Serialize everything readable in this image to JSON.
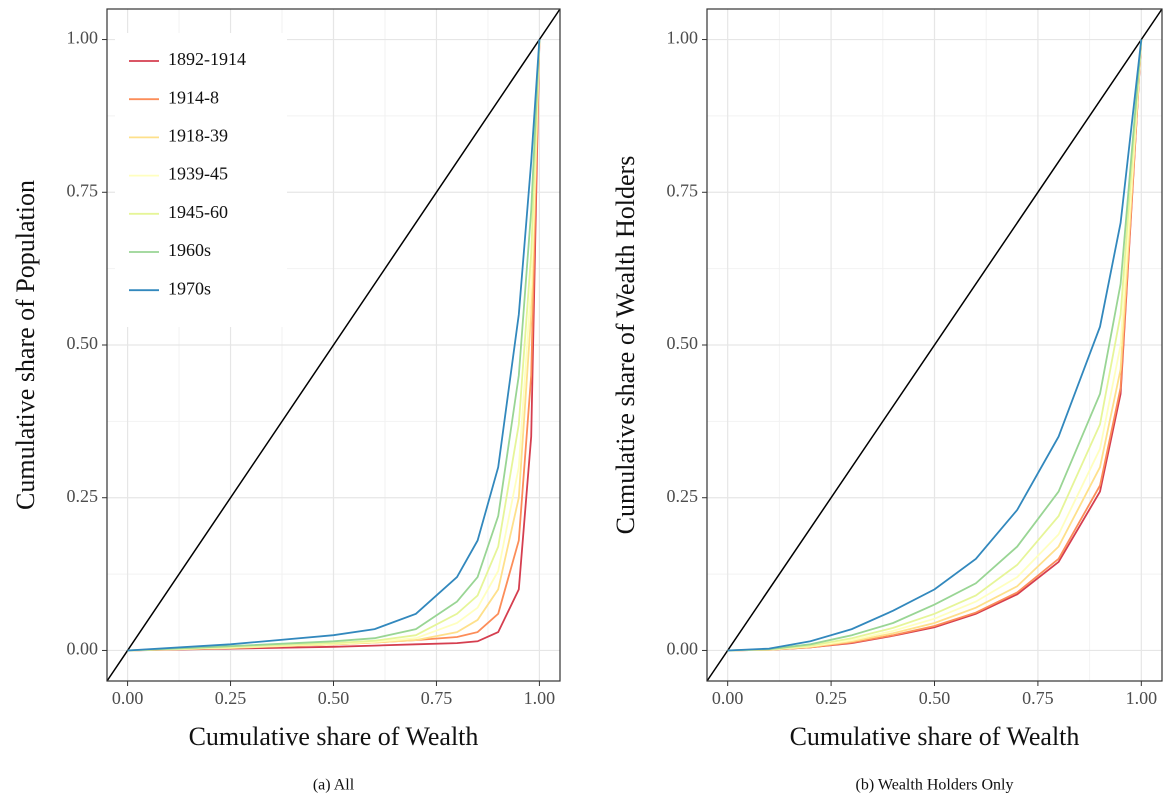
{
  "chart_data": [
    {
      "type": "line",
      "caption": "(a) All",
      "xlabel": "Cumulative share of Wealth",
      "ylabel": "Cumulative share of Population",
      "xlim": [
        -0.05,
        1.05
      ],
      "ylim": [
        -0.05,
        1.05
      ],
      "xticks": [
        {
          "value": 0,
          "label": "0.00"
        },
        {
          "value": 0.25,
          "label": "0.25"
        },
        {
          "value": 0.5,
          "label": "0.50"
        },
        {
          "value": 0.75,
          "label": "0.75"
        },
        {
          "value": 1,
          "label": "1.00"
        }
      ],
      "yticks": [
        {
          "value": 0,
          "label": "0.00"
        },
        {
          "value": 0.25,
          "label": "0.25"
        },
        {
          "value": 0.5,
          "label": "0.50"
        },
        {
          "value": 0.75,
          "label": "0.75"
        },
        {
          "value": 1,
          "label": "1.00"
        }
      ],
      "grid": true,
      "legend": "top-left",
      "diagonal": true,
      "x": [
        0,
        0.25,
        0.5,
        0.6,
        0.7,
        0.8,
        0.85,
        0.9,
        0.95,
        0.98,
        1
      ],
      "series": [
        {
          "name": "1892-1914",
          "color": "#d53e4f",
          "values": [
            0,
            0.003,
            0.006,
            0.008,
            0.01,
            0.012,
            0.015,
            0.03,
            0.1,
            0.35,
            1
          ]
        },
        {
          "name": "1914-8",
          "color": "#fc8d59",
          "values": [
            0,
            0.004,
            0.01,
            0.013,
            0.017,
            0.022,
            0.03,
            0.06,
            0.18,
            0.45,
            1
          ]
        },
        {
          "name": "1918-39",
          "color": "#fee08b",
          "values": [
            0,
            0.004,
            0.01,
            0.013,
            0.017,
            0.03,
            0.05,
            0.1,
            0.25,
            0.55,
            1
          ]
        },
        {
          "name": "1939-45",
          "color": "#ffffbf",
          "values": [
            0,
            0.005,
            0.011,
            0.014,
            0.02,
            0.045,
            0.07,
            0.13,
            0.3,
            0.6,
            1
          ]
        },
        {
          "name": "1945-60",
          "color": "#e6f598",
          "values": [
            0,
            0.006,
            0.012,
            0.016,
            0.025,
            0.06,
            0.09,
            0.17,
            0.37,
            0.65,
            1
          ]
        },
        {
          "name": "1960s",
          "color": "#99d594",
          "values": [
            0,
            0.007,
            0.015,
            0.02,
            0.035,
            0.08,
            0.12,
            0.22,
            0.45,
            0.72,
            1
          ]
        },
        {
          "name": "1970s",
          "color": "#3288bd",
          "values": [
            0,
            0.01,
            0.025,
            0.035,
            0.06,
            0.12,
            0.18,
            0.3,
            0.55,
            0.8,
            1
          ]
        }
      ]
    },
    {
      "type": "line",
      "caption": "(b) Wealth Holders Only",
      "xlabel": "Cumulative share of Wealth",
      "ylabel": "Cumulative share of Wealth Holders",
      "xlim": [
        -0.05,
        1.05
      ],
      "ylim": [
        -0.05,
        1.05
      ],
      "xticks": [
        {
          "value": 0,
          "label": "0.00"
        },
        {
          "value": 0.25,
          "label": "0.25"
        },
        {
          "value": 0.5,
          "label": "0.50"
        },
        {
          "value": 0.75,
          "label": "0.75"
        },
        {
          "value": 1,
          "label": "1.00"
        }
      ],
      "yticks": [
        {
          "value": 0,
          "label": "0.00"
        },
        {
          "value": 0.25,
          "label": "0.25"
        },
        {
          "value": 0.5,
          "label": "0.50"
        },
        {
          "value": 0.75,
          "label": "0.75"
        },
        {
          "value": 1,
          "label": "1.00"
        }
      ],
      "grid": true,
      "diagonal": true,
      "x": [
        0,
        0.1,
        0.2,
        0.3,
        0.4,
        0.5,
        0.6,
        0.7,
        0.8,
        0.9,
        0.95,
        1
      ],
      "series": [
        {
          "color": "#d53e4f",
          "values": [
            0,
            0.001,
            0.005,
            0.012,
            0.024,
            0.038,
            0.06,
            0.092,
            0.145,
            0.26,
            0.42,
            1
          ]
        },
        {
          "color": "#fc8d59",
          "values": [
            0,
            0.001,
            0.005,
            0.013,
            0.025,
            0.04,
            0.062,
            0.095,
            0.15,
            0.27,
            0.43,
            1
          ]
        },
        {
          "color": "#fee08b",
          "values": [
            0,
            0.001,
            0.006,
            0.015,
            0.028,
            0.045,
            0.07,
            0.105,
            0.17,
            0.3,
            0.46,
            1
          ]
        },
        {
          "color": "#ffffbf",
          "values": [
            0,
            0.0015,
            0.007,
            0.017,
            0.032,
            0.052,
            0.08,
            0.12,
            0.19,
            0.33,
            0.5,
            1
          ]
        },
        {
          "color": "#e6f598",
          "values": [
            0,
            0.002,
            0.008,
            0.02,
            0.037,
            0.06,
            0.09,
            0.14,
            0.22,
            0.37,
            0.55,
            1
          ]
        },
        {
          "color": "#99d594",
          "values": [
            0,
            0.002,
            0.01,
            0.025,
            0.045,
            0.075,
            0.11,
            0.17,
            0.26,
            0.42,
            0.6,
            1
          ]
        },
        {
          "color": "#3288bd",
          "values": [
            0,
            0.003,
            0.015,
            0.035,
            0.065,
            0.1,
            0.15,
            0.23,
            0.35,
            0.53,
            0.7,
            1
          ]
        }
      ]
    }
  ]
}
